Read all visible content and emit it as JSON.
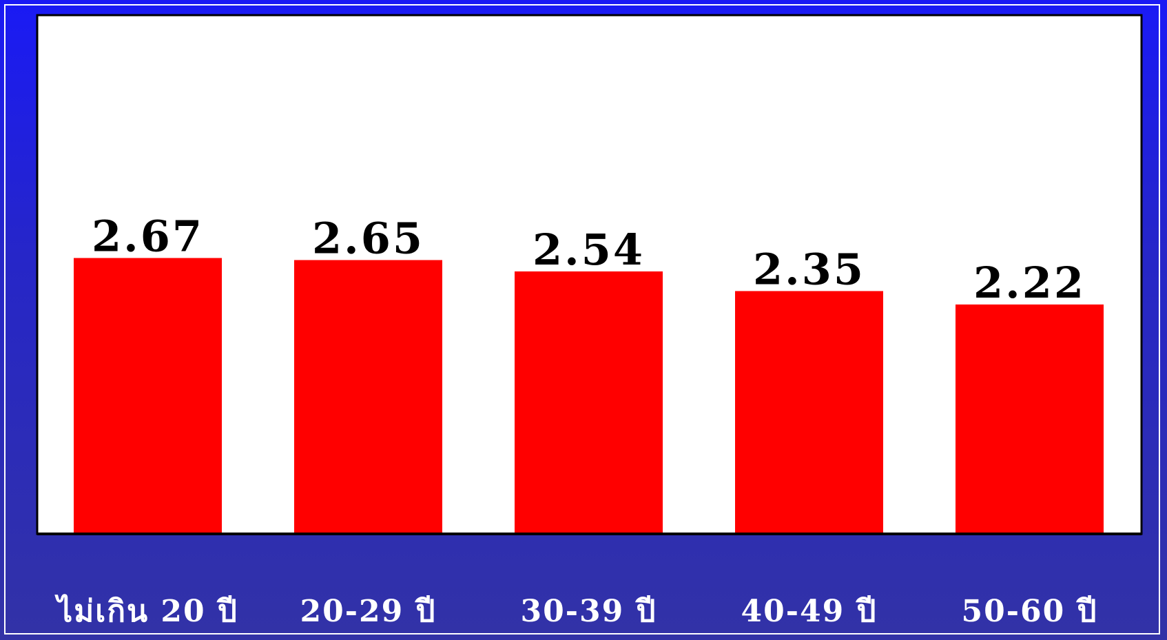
{
  "colors": {
    "background_top": "#1a1af5",
    "background_bottom": "#3232a6",
    "plot_area": "#ffffff",
    "bar": "#ff0000",
    "value_label": "#000000",
    "category_label": "#ffffff"
  },
  "chart_data": {
    "type": "bar",
    "categories": [
      "ไม่เกิน 20 ปี",
      "20-29 ปี",
      "30-39 ปี",
      "40-49 ปี",
      "50-60 ปี"
    ],
    "values": [
      2.67,
      2.65,
      2.54,
      2.35,
      2.22
    ],
    "data_labels": [
      "2.67",
      "2.65",
      "2.54",
      "2.35",
      "2.22"
    ],
    "ylim": [
      0,
      5
    ],
    "grid": false,
    "legend": "none"
  }
}
